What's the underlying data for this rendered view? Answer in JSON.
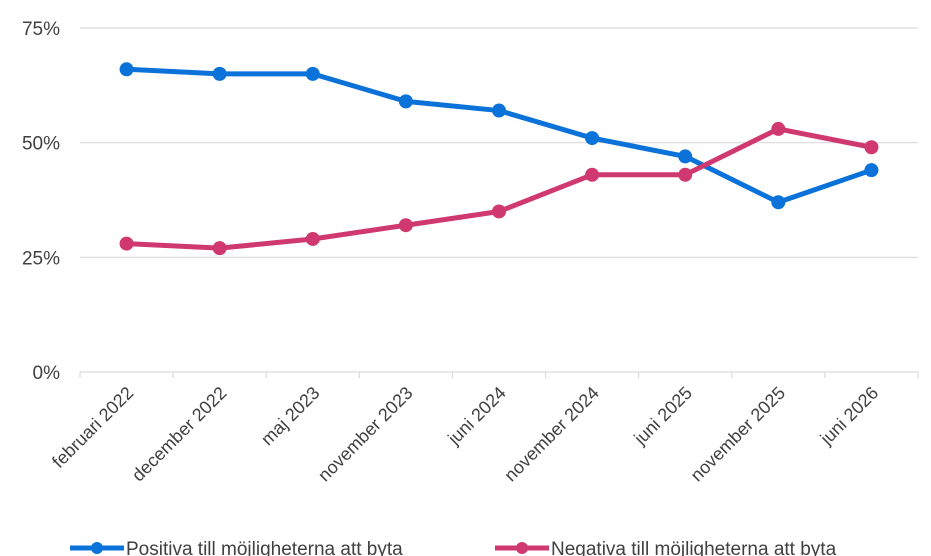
{
  "chart_data": {
    "type": "line",
    "title": "",
    "xlabel": "",
    "ylabel": "",
    "categories": [
      "februari 2022",
      "december 2022",
      "maj 2023",
      "november 2023",
      "juni 2024",
      "november 2024",
      "juni 2025",
      "november 2025",
      "juni 2026"
    ],
    "ylim": [
      0,
      75
    ],
    "yticks": [
      {
        "value": 0,
        "label": "0%"
      },
      {
        "value": 25,
        "label": "25%"
      },
      {
        "value": 50,
        "label": "50%"
      },
      {
        "value": 75,
        "label": "75%"
      }
    ],
    "grid": "horizontal",
    "legend_position": "bottom",
    "series": [
      {
        "name": "Positiva till möjligheterna att byta",
        "color": "#0B72D9",
        "values": [
          66,
          65,
          65,
          59,
          57,
          51,
          47,
          37,
          44
        ]
      },
      {
        "name": "Negativa till möjligheterna att byta",
        "color": "#D0396F",
        "values": [
          28,
          27,
          29,
          32,
          35,
          43,
          43,
          53,
          49
        ]
      }
    ]
  }
}
